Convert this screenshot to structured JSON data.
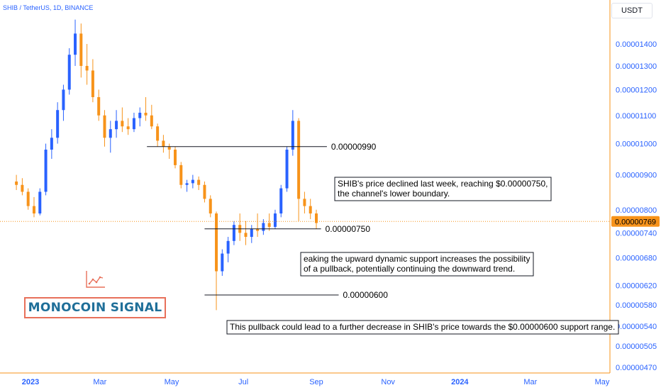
{
  "header": {
    "symbol": "SHIB / TetherUS, 1D, BINANCE",
    "currency": "USDT"
  },
  "brand": {
    "name": "MONOCOIN SIGNAL"
  },
  "colors": {
    "up": "#2962ff",
    "down": "#f7931a",
    "axis_text": "#2962ff",
    "price_tag_bg": "#f7931a",
    "brand_border": "#e8705a",
    "brand_text": "#1f6f99"
  },
  "chart_data": {
    "type": "candlestick",
    "title": "SHIB / TetherUS, 1D, BINANCE",
    "x_ticks": [
      {
        "label": "2023",
        "date": "2023-01-01",
        "bold": true
      },
      {
        "label": "Mar",
        "date": "2023-03-01",
        "bold": false
      },
      {
        "label": "May",
        "date": "2023-05-01",
        "bold": false
      },
      {
        "label": "Jul",
        "date": "2023-07-01",
        "bold": false
      },
      {
        "label": "Sep",
        "date": "2023-09-01",
        "bold": false
      },
      {
        "label": "Nov",
        "date": "2023-11-01",
        "bold": false
      },
      {
        "label": "2024",
        "date": "2024-01-01",
        "bold": true
      },
      {
        "label": "Mar",
        "date": "2024-03-01",
        "bold": false
      },
      {
        "label": "May",
        "date": "2024-05-01",
        "bold": false
      }
    ],
    "y_ticks": [
      {
        "label": "0.00001400",
        "value": 1.4e-05
      },
      {
        "label": "0.00001300",
        "value": 1.3e-05
      },
      {
        "label": "0.00001200",
        "value": 1.2e-05
      },
      {
        "label": "0.00001100",
        "value": 1.1e-05
      },
      {
        "label": "0.00001000",
        "value": 1e-05
      },
      {
        "label": "0.00000900",
        "value": 9e-06
      },
      {
        "label": "0.00000800",
        "value": 8e-06
      },
      {
        "label": "0.00000740",
        "value": 7.4e-06
      },
      {
        "label": "0.00000680",
        "value": 6.8e-06
      },
      {
        "label": "0.00000620",
        "value": 6.2e-06
      },
      {
        "label": "0.00000580",
        "value": 5.8e-06
      },
      {
        "label": "0.00000540",
        "value": 5.4e-06
      },
      {
        "label": "0.00000505",
        "value": 5.05e-06
      },
      {
        "label": "0.00000470",
        "value": 4.7e-06
      }
    ],
    "y_scale": "log",
    "current_price": {
      "label": "0.00000769",
      "value": 7.69e-06
    },
    "levels": [
      {
        "label": "0.00000990",
        "value": 9.9e-06,
        "from": "2023-04-10",
        "to": "2023-09-10"
      },
      {
        "label": "0.00000750",
        "value": 7.5e-06,
        "from": "2023-05-29",
        "to": "2023-09-05"
      },
      {
        "label": "0.00000600",
        "value": 6e-06,
        "from": "2023-05-29",
        "to": "2023-09-20"
      }
    ],
    "annotations": [
      {
        "lines": [
          "SHIB's price declined last week, reaching $0.00000750,",
          "the channel's lower boundary."
        ]
      },
      {
        "lines": [
          "eaking the upward dynamic support increases the possibility",
          "of a pullback, potentially continuing the downward trend."
        ]
      },
      {
        "lines": [
          "This pullback could lead to a further decrease in SHIB's price towards the $0.00000600 support range."
        ]
      }
    ],
    "candles": [
      {
        "date": "2022-12-20",
        "open": 8.8e-06,
        "high": 9e-06,
        "low": 8.55e-06,
        "close": 8.7e-06
      },
      {
        "date": "2022-12-25",
        "open": 8.7e-06,
        "high": 8.9e-06,
        "low": 8.4e-06,
        "close": 8.5e-06
      },
      {
        "date": "2022-12-30",
        "open": 8.5e-06,
        "high": 8.6e-06,
        "low": 8e-06,
        "close": 8.1e-06
      },
      {
        "date": "2023-01-04",
        "open": 8.1e-06,
        "high": 8.35e-06,
        "low": 7.8e-06,
        "close": 7.9e-06
      },
      {
        "date": "2023-01-09",
        "open": 7.9e-06,
        "high": 8.6e-06,
        "low": 7.85e-06,
        "close": 8.5e-06
      },
      {
        "date": "2023-01-14",
        "open": 8.5e-06,
        "high": 1e-05,
        "low": 8.4e-06,
        "close": 9.8e-06
      },
      {
        "date": "2023-01-19",
        "open": 9.8e-06,
        "high": 1.05e-05,
        "low": 9.5e-06,
        "close": 1.02e-05
      },
      {
        "date": "2023-01-24",
        "open": 1.02e-05,
        "high": 1.15e-05,
        "low": 1e-05,
        "close": 1.12e-05
      },
      {
        "date": "2023-01-29",
        "open": 1.12e-05,
        "high": 1.22e-05,
        "low": 1.08e-05,
        "close": 1.2e-05
      },
      {
        "date": "2023-02-03",
        "open": 1.2e-05,
        "high": 1.38e-05,
        "low": 1.18e-05,
        "close": 1.35e-05
      },
      {
        "date": "2023-02-08",
        "open": 1.35e-05,
        "high": 1.52e-05,
        "low": 1.3e-05,
        "close": 1.45e-05
      },
      {
        "date": "2023-02-13",
        "open": 1.45e-05,
        "high": 1.5e-05,
        "low": 1.25e-05,
        "close": 1.3e-05
      },
      {
        "date": "2023-02-18",
        "open": 1.3e-05,
        "high": 1.4e-05,
        "low": 1.22e-05,
        "close": 1.28e-05
      },
      {
        "date": "2023-02-23",
        "open": 1.28e-05,
        "high": 1.33e-05,
        "low": 1.15e-05,
        "close": 1.17e-05
      },
      {
        "date": "2023-02-28",
        "open": 1.17e-05,
        "high": 1.2e-05,
        "low": 1.08e-05,
        "close": 1.1e-05
      },
      {
        "date": "2023-03-05",
        "open": 1.1e-05,
        "high": 1.12e-05,
        "low": 9.9e-06,
        "close": 1.02e-05
      },
      {
        "date": "2023-03-10",
        "open": 1.02e-05,
        "high": 1.08e-05,
        "low": 9.7e-06,
        "close": 1.05e-05
      },
      {
        "date": "2023-03-15",
        "open": 1.05e-05,
        "high": 1.12e-05,
        "low": 1.02e-05,
        "close": 1.08e-05
      },
      {
        "date": "2023-03-20",
        "open": 1.08e-05,
        "high": 1.13e-05,
        "low": 1.04e-05,
        "close": 1.06e-05
      },
      {
        "date": "2023-03-25",
        "open": 1.06e-05,
        "high": 1.09e-05,
        "low": 1.03e-05,
        "close": 1.05e-05
      },
      {
        "date": "2023-03-30",
        "open": 1.05e-05,
        "high": 1.11e-05,
        "low": 1.04e-05,
        "close": 1.09e-05
      },
      {
        "date": "2023-04-04",
        "open": 1.09e-05,
        "high": 1.13e-05,
        "low": 1.06e-05,
        "close": 1.11e-05
      },
      {
        "date": "2023-04-09",
        "open": 1.11e-05,
        "high": 1.17e-05,
        "low": 1.08e-05,
        "close": 1.1e-05
      },
      {
        "date": "2023-04-14",
        "open": 1.1e-05,
        "high": 1.14e-05,
        "low": 1.05e-05,
        "close": 1.06e-05
      },
      {
        "date": "2023-04-19",
        "open": 1.06e-05,
        "high": 1.07e-05,
        "low": 9.9e-06,
        "close": 1.01e-05
      },
      {
        "date": "2023-04-24",
        "open": 1.01e-05,
        "high": 1.03e-05,
        "low": 9.7e-06,
        "close": 9.9e-06
      },
      {
        "date": "2023-04-29",
        "open": 9.9e-06,
        "high": 1e-05,
        "low": 9.5e-06,
        "close": 9.8e-06
      },
      {
        "date": "2023-05-04",
        "open": 9.8e-06,
        "high": 9.9e-06,
        "low": 9.2e-06,
        "close": 9.3e-06
      },
      {
        "date": "2023-05-09",
        "open": 9.3e-06,
        "high": 9.4e-06,
        "low": 8.6e-06,
        "close": 8.7e-06
      },
      {
        "date": "2023-05-14",
        "open": 8.7e-06,
        "high": 8.85e-06,
        "low": 8.5e-06,
        "close": 8.75e-06
      },
      {
        "date": "2023-05-19",
        "open": 8.75e-06,
        "high": 9e-06,
        "low": 8.6e-06,
        "close": 8.85e-06
      },
      {
        "date": "2023-05-24",
        "open": 8.85e-06,
        "high": 8.95e-06,
        "low": 8.55e-06,
        "close": 8.7e-06
      },
      {
        "date": "2023-05-29",
        "open": 8.7e-06,
        "high": 8.8e-06,
        "low": 8.2e-06,
        "close": 8.3e-06
      },
      {
        "date": "2023-06-03",
        "open": 8.3e-06,
        "high": 8.4e-06,
        "low": 7.8e-06,
        "close": 7.9e-06
      },
      {
        "date": "2023-06-08",
        "open": 7.9e-06,
        "high": 7.95e-06,
        "low": 5.7e-06,
        "close": 6.5e-06
      },
      {
        "date": "2023-06-13",
        "open": 6.5e-06,
        "high": 7e-06,
        "low": 6.4e-06,
        "close": 6.9e-06
      },
      {
        "date": "2023-06-18",
        "open": 6.9e-06,
        "high": 7.3e-06,
        "low": 6.7e-06,
        "close": 7.2e-06
      },
      {
        "date": "2023-06-23",
        "open": 7.2e-06,
        "high": 7.7e-06,
        "low": 7.1e-06,
        "close": 7.6e-06
      },
      {
        "date": "2023-06-28",
        "open": 7.6e-06,
        "high": 7.9e-06,
        "low": 7.2e-06,
        "close": 7.4e-06
      },
      {
        "date": "2023-07-03",
        "open": 7.4e-06,
        "high": 7.7e-06,
        "low": 7.1e-06,
        "close": 7.3e-06
      },
      {
        "date": "2023-07-08",
        "open": 7.3e-06,
        "high": 7.6e-06,
        "low": 7.15e-06,
        "close": 7.5e-06
      },
      {
        "date": "2023-07-13",
        "open": 7.5e-06,
        "high": 7.9e-06,
        "low": 7.3e-06,
        "close": 7.45e-06
      },
      {
        "date": "2023-07-18",
        "open": 7.45e-06,
        "high": 7.75e-06,
        "low": 7.35e-06,
        "close": 7.65e-06
      },
      {
        "date": "2023-07-23",
        "open": 7.65e-06,
        "high": 7.9e-06,
        "low": 7.45e-06,
        "close": 7.55e-06
      },
      {
        "date": "2023-07-28",
        "open": 7.55e-06,
        "high": 8e-06,
        "low": 7.5e-06,
        "close": 7.9e-06
      },
      {
        "date": "2023-08-02",
        "open": 7.9e-06,
        "high": 8.7e-06,
        "low": 7.8e-06,
        "close": 8.6e-06
      },
      {
        "date": "2023-08-07",
        "open": 8.6e-06,
        "high": 9.9e-06,
        "low": 8.5e-06,
        "close": 9.8e-06
      },
      {
        "date": "2023-08-12",
        "open": 9.8e-06,
        "high": 1.12e-05,
        "low": 9.6e-06,
        "close": 1.08e-05
      },
      {
        "date": "2023-08-17",
        "open": 1.08e-05,
        "high": 1.09e-05,
        "low": 7.7e-06,
        "close": 8.3e-06
      },
      {
        "date": "2023-08-22",
        "open": 8.3e-06,
        "high": 8.5e-06,
        "low": 7.9e-06,
        "close": 8.1e-06
      },
      {
        "date": "2023-08-27",
        "open": 8.1e-06,
        "high": 8.3e-06,
        "low": 7.75e-06,
        "close": 7.9e-06
      },
      {
        "date": "2023-09-01",
        "open": 7.9e-06,
        "high": 8e-06,
        "low": 7.5e-06,
        "close": 7.65e-06
      }
    ]
  }
}
